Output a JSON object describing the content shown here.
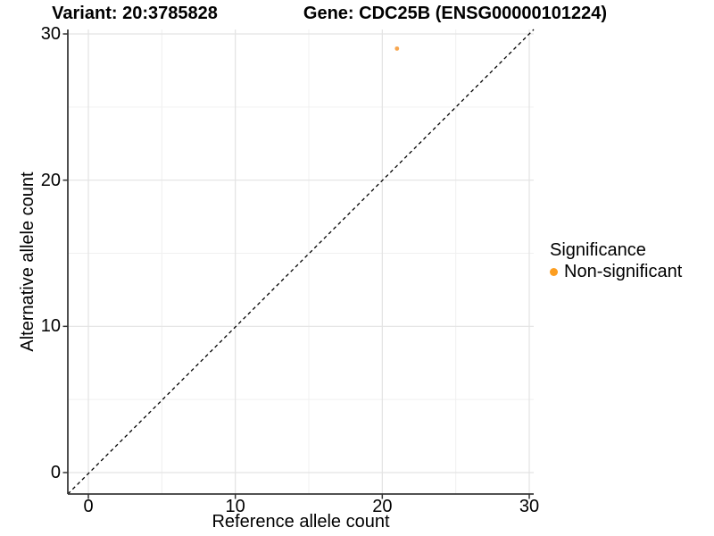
{
  "chart_data": {
    "type": "scatter",
    "titles": {
      "left": "Variant: 20:3785828",
      "right": "Gene: CDC25B (ENSG00000101224)"
    },
    "xlabel": "Reference allele count",
    "ylabel": "Alternative allele count",
    "xlim": [
      0,
      30
    ],
    "ylim": [
      0,
      30
    ],
    "x_ticks": [
      0,
      10,
      20,
      30
    ],
    "y_ticks": [
      0,
      10,
      20,
      30
    ],
    "minor_grid": [
      5,
      15,
      25
    ],
    "grid": true,
    "identity_line": {
      "style": "dashed",
      "color": "#000000",
      "from": [
        0,
        0
      ],
      "to": [
        30,
        30
      ]
    },
    "points": [
      {
        "x": 21,
        "y": 29,
        "series": "Non-significant",
        "color": "#F7A64F",
        "radius": 2.4
      }
    ],
    "legend": {
      "title": "Significance",
      "position": "right",
      "entries": [
        {
          "label": "Non-significant",
          "color": "#FC9E21",
          "marker": "circle"
        }
      ]
    },
    "colors": {
      "background": "#FFFFFF",
      "grid_major": "#E3E3E3",
      "grid_minor": "#F0F0F0",
      "axis_line": "#3A3A3A",
      "tick_mark": "#333333",
      "text": "#000000"
    }
  }
}
